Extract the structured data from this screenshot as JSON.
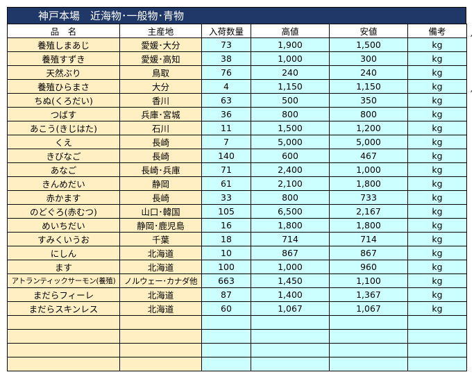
{
  "title": "神戸本場　近海物･一般物･青物",
  "headers": {
    "name": "品　名",
    "origin": "主産地",
    "qty": "入荷数量",
    "high": "高値",
    "low": "安値",
    "note": "備考"
  },
  "rows": [
    {
      "name": "養殖しまあじ",
      "origin": "愛媛･大分",
      "qty": "73",
      "high": "1,900",
      "low": "1,500",
      "note": "kg"
    },
    {
      "name": "養殖すずき",
      "origin": "愛媛･高知",
      "qty": "38",
      "high": "1,000",
      "low": "300",
      "note": "kg"
    },
    {
      "name": "天然ぶり",
      "origin": "鳥取",
      "qty": "76",
      "high": "240",
      "low": "240",
      "note": "kg"
    },
    {
      "name": "養殖ひらまさ",
      "origin": "大分",
      "qty": "4",
      "high": "1,150",
      "low": "1,150",
      "note": "kg"
    },
    {
      "name": "ちぬ(くろだい)",
      "origin": "香川",
      "qty": "63",
      "high": "500",
      "low": "350",
      "note": "kg"
    },
    {
      "name": "つばす",
      "origin": "兵庫･宮城",
      "qty": "36",
      "high": "800",
      "low": "800",
      "note": "kg"
    },
    {
      "name": "あこう(きじはた)",
      "origin": "石川",
      "qty": "11",
      "high": "1,500",
      "low": "1,200",
      "note": "kg"
    },
    {
      "name": "くえ",
      "origin": "長崎",
      "qty": "7",
      "high": "5,000",
      "low": "5,000",
      "note": "kg"
    },
    {
      "name": "きびなご",
      "origin": "長崎",
      "qty": "140",
      "high": "600",
      "low": "467",
      "note": "kg"
    },
    {
      "name": "あなご",
      "origin": "長崎･兵庫",
      "qty": "71",
      "high": "2,400",
      "low": "1,000",
      "note": "kg"
    },
    {
      "name": "きんめだい",
      "origin": "静岡",
      "qty": "61",
      "high": "2,100",
      "low": "1,800",
      "note": "kg"
    },
    {
      "name": "赤かます",
      "origin": "長崎",
      "qty": "33",
      "high": "800",
      "low": "733",
      "note": "kg"
    },
    {
      "name": "のどぐろ(赤むつ)",
      "origin": "山口･韓国",
      "qty": "105",
      "high": "6,500",
      "low": "2,167",
      "note": "kg"
    },
    {
      "name": "めいちだい",
      "origin": "静岡･鹿児島",
      "qty": "16",
      "high": "1,800",
      "low": "1,800",
      "note": "kg"
    },
    {
      "name": "すみくいうお",
      "origin": "千葉",
      "qty": "18",
      "high": "714",
      "low": "714",
      "note": "kg"
    },
    {
      "name": "にしん",
      "origin": "北海道",
      "qty": "10",
      "high": "867",
      "low": "867",
      "note": "kg"
    },
    {
      "name": "ます",
      "origin": "北海道",
      "qty": "100",
      "high": "1,000",
      "low": "960",
      "note": "kg"
    },
    {
      "name": "アトランティックサーモン(養殖)",
      "origin": "ノルウェー･カナダ他",
      "qty": "663",
      "high": "1,450",
      "low": "1,100",
      "note": "kg"
    },
    {
      "name": "まだらフィーレ",
      "origin": "北海道",
      "qty": "87",
      "high": "1,400",
      "low": "1,367",
      "note": "kg"
    },
    {
      "name": "まだらスキンレス",
      "origin": "北海道",
      "qty": "60",
      "high": "1,067",
      "low": "1,067",
      "note": "kg"
    },
    {
      "name": "",
      "origin": "",
      "qty": "",
      "high": "",
      "low": "",
      "note": ""
    },
    {
      "name": "",
      "origin": "",
      "qty": "",
      "high": "",
      "low": "",
      "note": ""
    },
    {
      "name": "",
      "origin": "",
      "qty": "",
      "high": "",
      "low": "",
      "note": ""
    },
    {
      "name": "",
      "origin": "",
      "qty": "",
      "high": "",
      "low": "",
      "note": ""
    }
  ],
  "side_marks": [
    ",",
    ","
  ]
}
